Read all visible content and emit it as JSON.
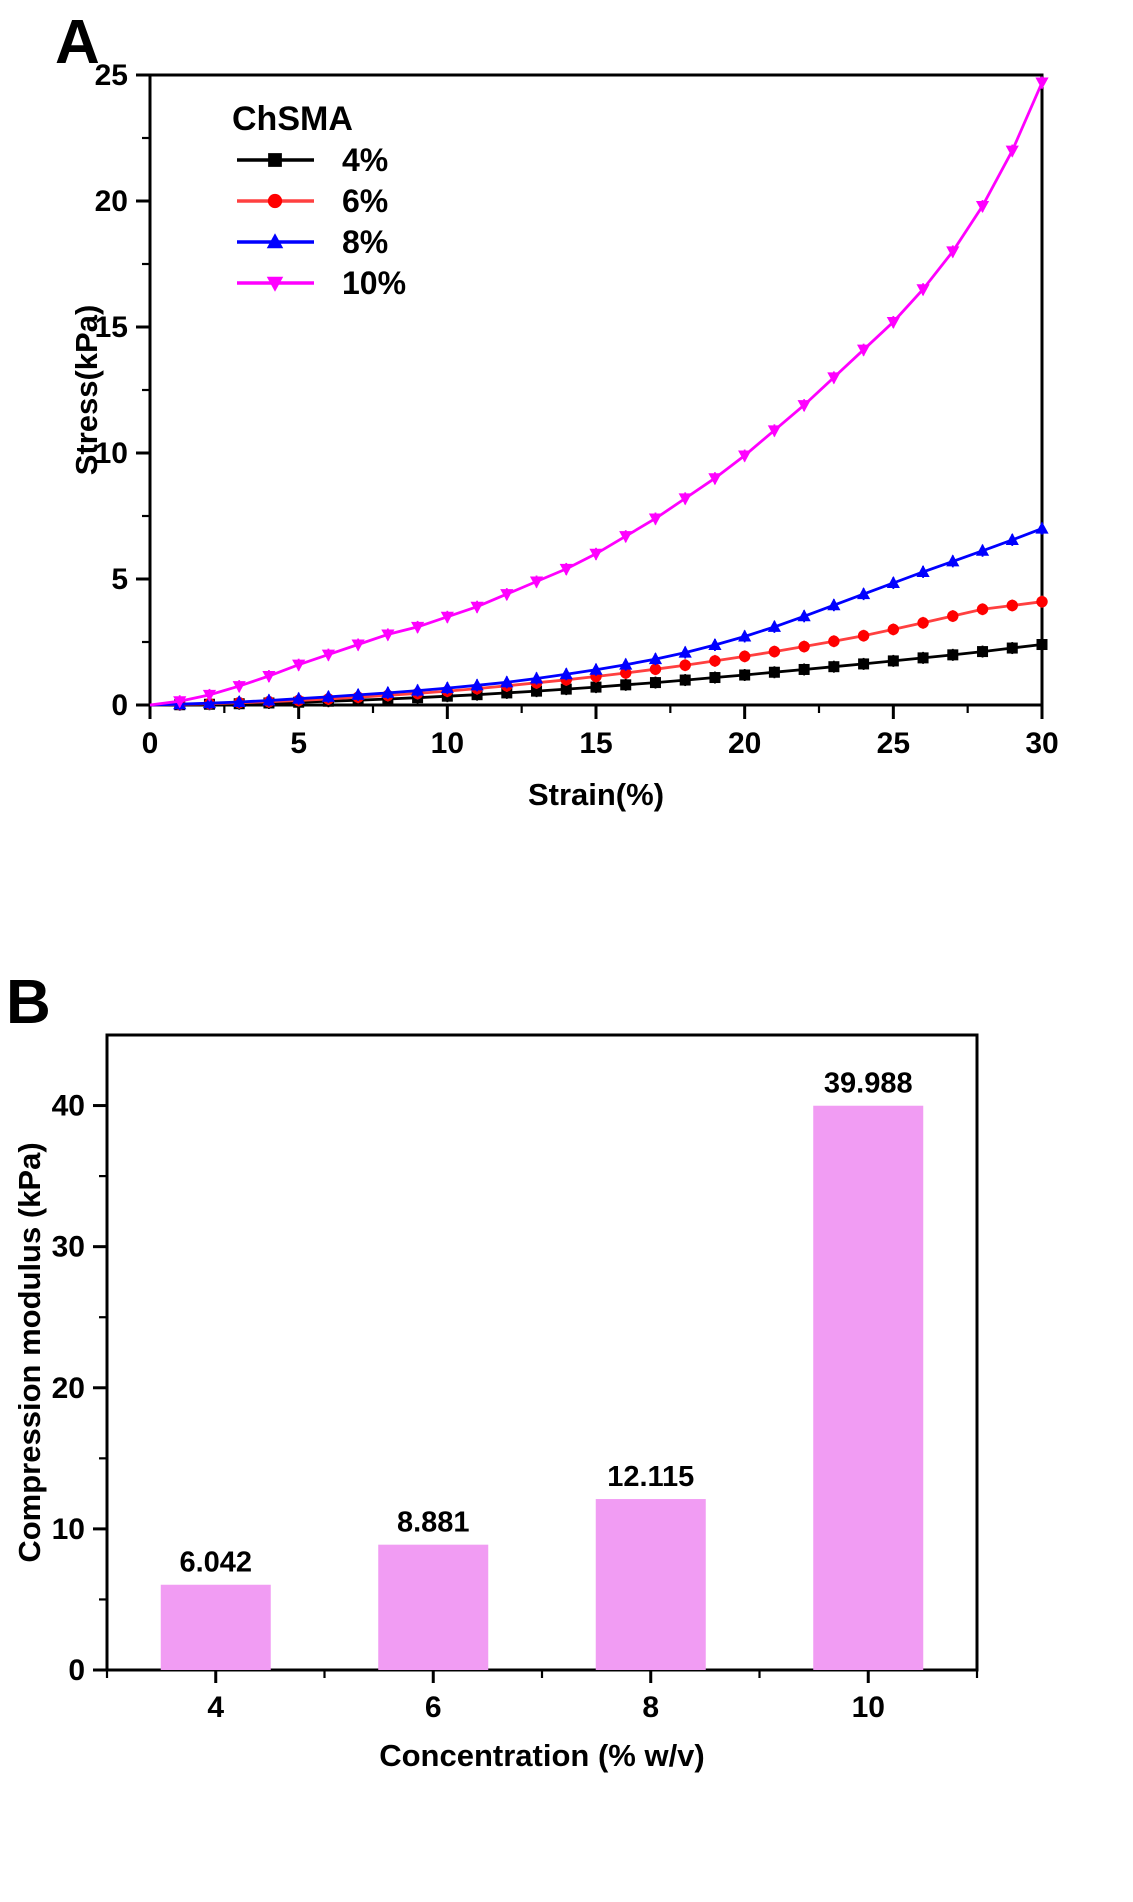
{
  "panel_labels": {
    "a": "A",
    "b": "B"
  },
  "chart_data": [
    {
      "id": "A",
      "type": "line",
      "xlabel": "Strain(%)",
      "ylabel": "Stress(kPa)",
      "xlim": [
        0,
        30
      ],
      "ylim": [
        0,
        25
      ],
      "x_major_ticks": [
        0,
        5,
        10,
        15,
        20,
        25,
        30
      ],
      "x_minor_step": 2.5,
      "y_major_ticks": [
        0,
        5,
        10,
        15,
        20,
        25
      ],
      "y_minor_step": 2.5,
      "legend_title": "ChSMA",
      "legend_position": "top-left",
      "x": [
        0,
        1,
        2,
        3,
        4,
        5,
        6,
        7,
        8,
        9,
        10,
        11,
        12,
        13,
        14,
        15,
        16,
        17,
        18,
        19,
        20,
        21,
        22,
        23,
        24,
        25,
        26,
        27,
        28,
        29,
        30
      ],
      "series": [
        {
          "name": "4%",
          "color": "#000000",
          "line_color": "#000000",
          "marker": "square",
          "y": [
            0,
            0.01,
            0.03,
            0.05,
            0.08,
            0.11,
            0.15,
            0.19,
            0.24,
            0.29,
            0.35,
            0.41,
            0.48,
            0.55,
            0.63,
            0.71,
            0.8,
            0.89,
            0.99,
            1.09,
            1.19,
            1.3,
            1.41,
            1.52,
            1.63,
            1.75,
            1.87,
            1.99,
            2.12,
            2.26,
            2.4
          ]
        },
        {
          "name": "6%",
          "color": "#ff0000",
          "line_color": "#ff4040",
          "marker": "circle",
          "y": [
            0,
            0.02,
            0.05,
            0.09,
            0.13,
            0.18,
            0.24,
            0.31,
            0.38,
            0.46,
            0.55,
            0.65,
            0.76,
            0.88,
            1.0,
            1.13,
            1.27,
            1.42,
            1.58,
            1.75,
            1.93,
            2.12,
            2.32,
            2.53,
            2.75,
            3.0,
            3.26,
            3.53,
            3.8,
            3.95,
            4.1
          ]
        },
        {
          "name": "8%",
          "color": "#0000ff",
          "line_color": "#0000ff",
          "marker": "triangle-up",
          "y": [
            0,
            0.03,
            0.07,
            0.12,
            0.18,
            0.25,
            0.32,
            0.4,
            0.48,
            0.57,
            0.67,
            0.78,
            0.9,
            1.05,
            1.22,
            1.4,
            1.6,
            1.82,
            2.08,
            2.38,
            2.72,
            3.1,
            3.52,
            3.96,
            4.4,
            4.84,
            5.28,
            5.7,
            6.12,
            6.55,
            7.0
          ]
        },
        {
          "name": "10%",
          "color": "#ff00ff",
          "line_color": "#ff00ff",
          "marker": "triangle-down",
          "y": [
            0,
            0.15,
            0.4,
            0.75,
            1.15,
            1.6,
            2.0,
            2.4,
            2.8,
            3.1,
            3.5,
            3.9,
            4.4,
            4.9,
            5.4,
            6.0,
            6.7,
            7.4,
            8.2,
            9.0,
            9.9,
            10.9,
            11.9,
            13.0,
            14.1,
            15.2,
            16.5,
            18.0,
            19.8,
            22.0,
            24.7
          ]
        }
      ]
    },
    {
      "id": "B",
      "type": "bar",
      "xlabel": "Concentration (% w/v)",
      "ylabel": "Compression modulus (kPa)",
      "categories": [
        "4",
        "6",
        "8",
        "10"
      ],
      "values": [
        6.042,
        8.881,
        12.115,
        39.988
      ],
      "value_labels": [
        "6.042",
        "8.881",
        "12.115",
        "39.988"
      ],
      "bar_color": "#F19CF3",
      "ylim": [
        0,
        45
      ],
      "y_major_ticks": [
        0,
        10,
        20,
        30,
        40
      ],
      "y_minor_ticks": [
        5,
        15,
        25,
        35
      ],
      "grid": false
    }
  ]
}
